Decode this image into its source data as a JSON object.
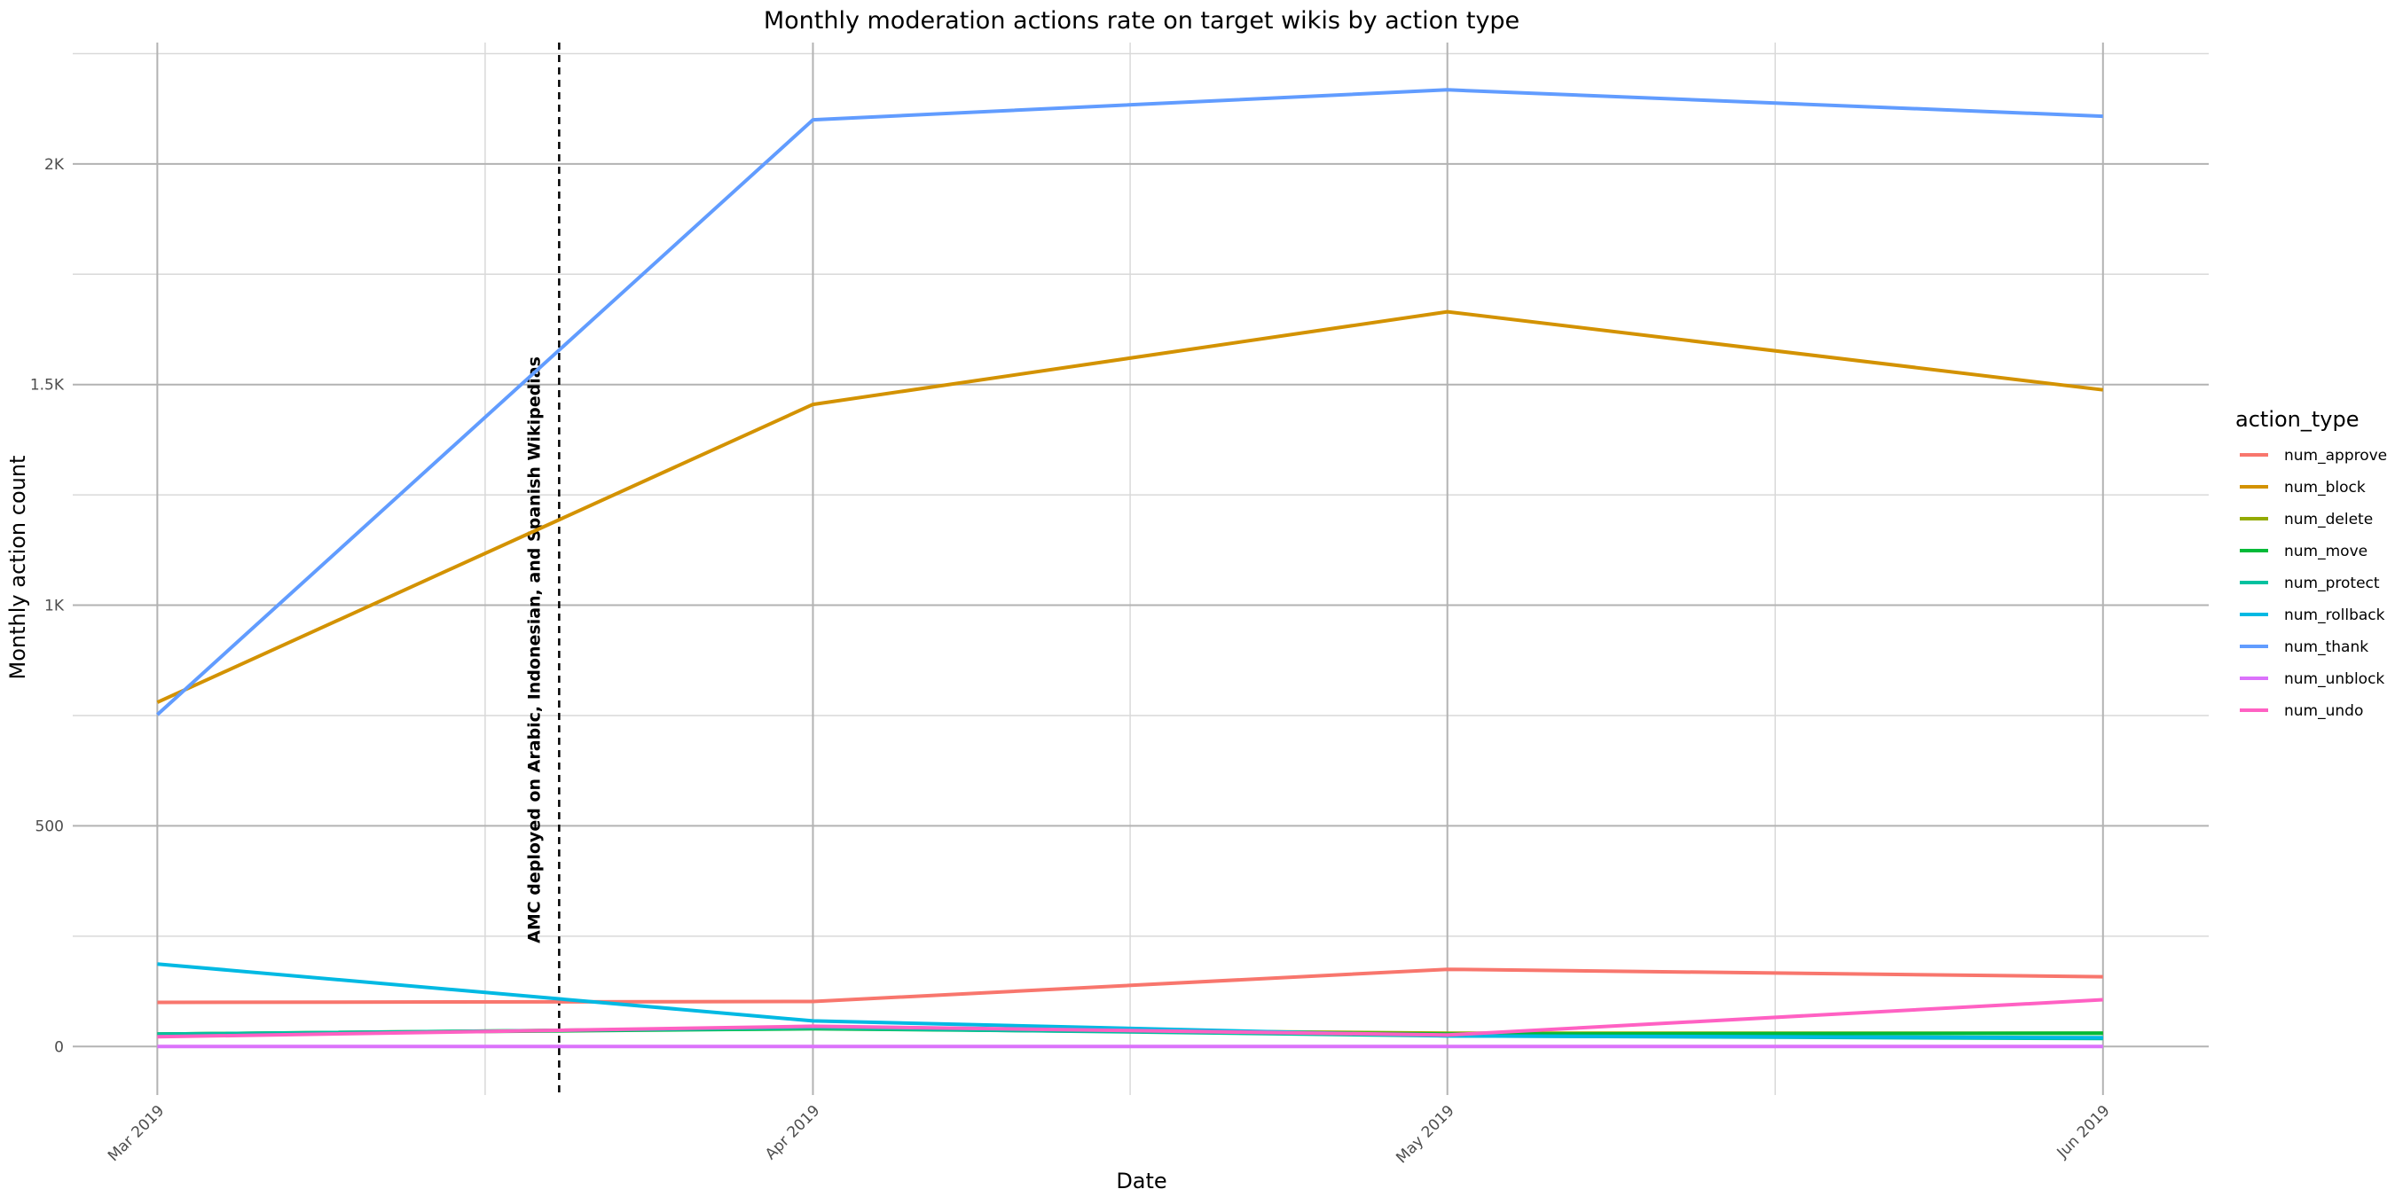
{
  "chart_data": {
    "type": "line",
    "title": "Monthly moderation actions rate on target wikis by action type",
    "xlabel": "Date",
    "ylabel": "Monthly action count",
    "x": [
      "2019-03-01",
      "2019-04-01",
      "2019-05-01",
      "2019-06-01"
    ],
    "x_tick_labels": [
      "Mar 2019",
      "Apr 2019",
      "May 2019",
      "Jun 2019"
    ],
    "xlim": [
      "2019-02-25",
      "2019-06-06"
    ],
    "ylim": [
      -110,
      2275
    ],
    "y_ticks": [
      0,
      500,
      1000,
      1500,
      2000
    ],
    "y_tick_labels": [
      "0",
      "500",
      "1K",
      "1.5K",
      "2K"
    ],
    "grid": true,
    "legend_title": "action_type",
    "legend_position": "right",
    "series": [
      {
        "name": "num_approve",
        "color": "#F8766D",
        "values": [
          100,
          102,
          175,
          158
        ]
      },
      {
        "name": "num_block",
        "color": "#D39200",
        "values": [
          780,
          1455,
          1665,
          1488
        ]
      },
      {
        "name": "num_delete",
        "color": "#93AA00",
        "values": [
          28,
          42,
          30,
          30
        ]
      },
      {
        "name": "num_move",
        "color": "#00BA38",
        "values": [
          28,
          40,
          28,
          30
        ]
      },
      {
        "name": "num_protect",
        "color": "#00C19F",
        "values": [
          28,
          42,
          24,
          18
        ]
      },
      {
        "name": "num_rollback",
        "color": "#00B9E3",
        "values": [
          187,
          58,
          24,
          20
        ]
      },
      {
        "name": "num_thank",
        "color": "#619CFF",
        "values": [
          752,
          2100,
          2168,
          2108
        ]
      },
      {
        "name": "num_unblock",
        "color": "#DB72FB",
        "values": [
          0,
          0,
          0,
          0
        ]
      },
      {
        "name": "num_undo",
        "color": "#FF61C3",
        "values": [
          22,
          46,
          26,
          106
        ]
      }
    ],
    "annotation": {
      "date": "2019-03-20",
      "label": "AMC deployed on Arabic, Indonesian, and Spanish Wikipedias",
      "line_style": "dashed",
      "line_color": "#000000"
    }
  }
}
